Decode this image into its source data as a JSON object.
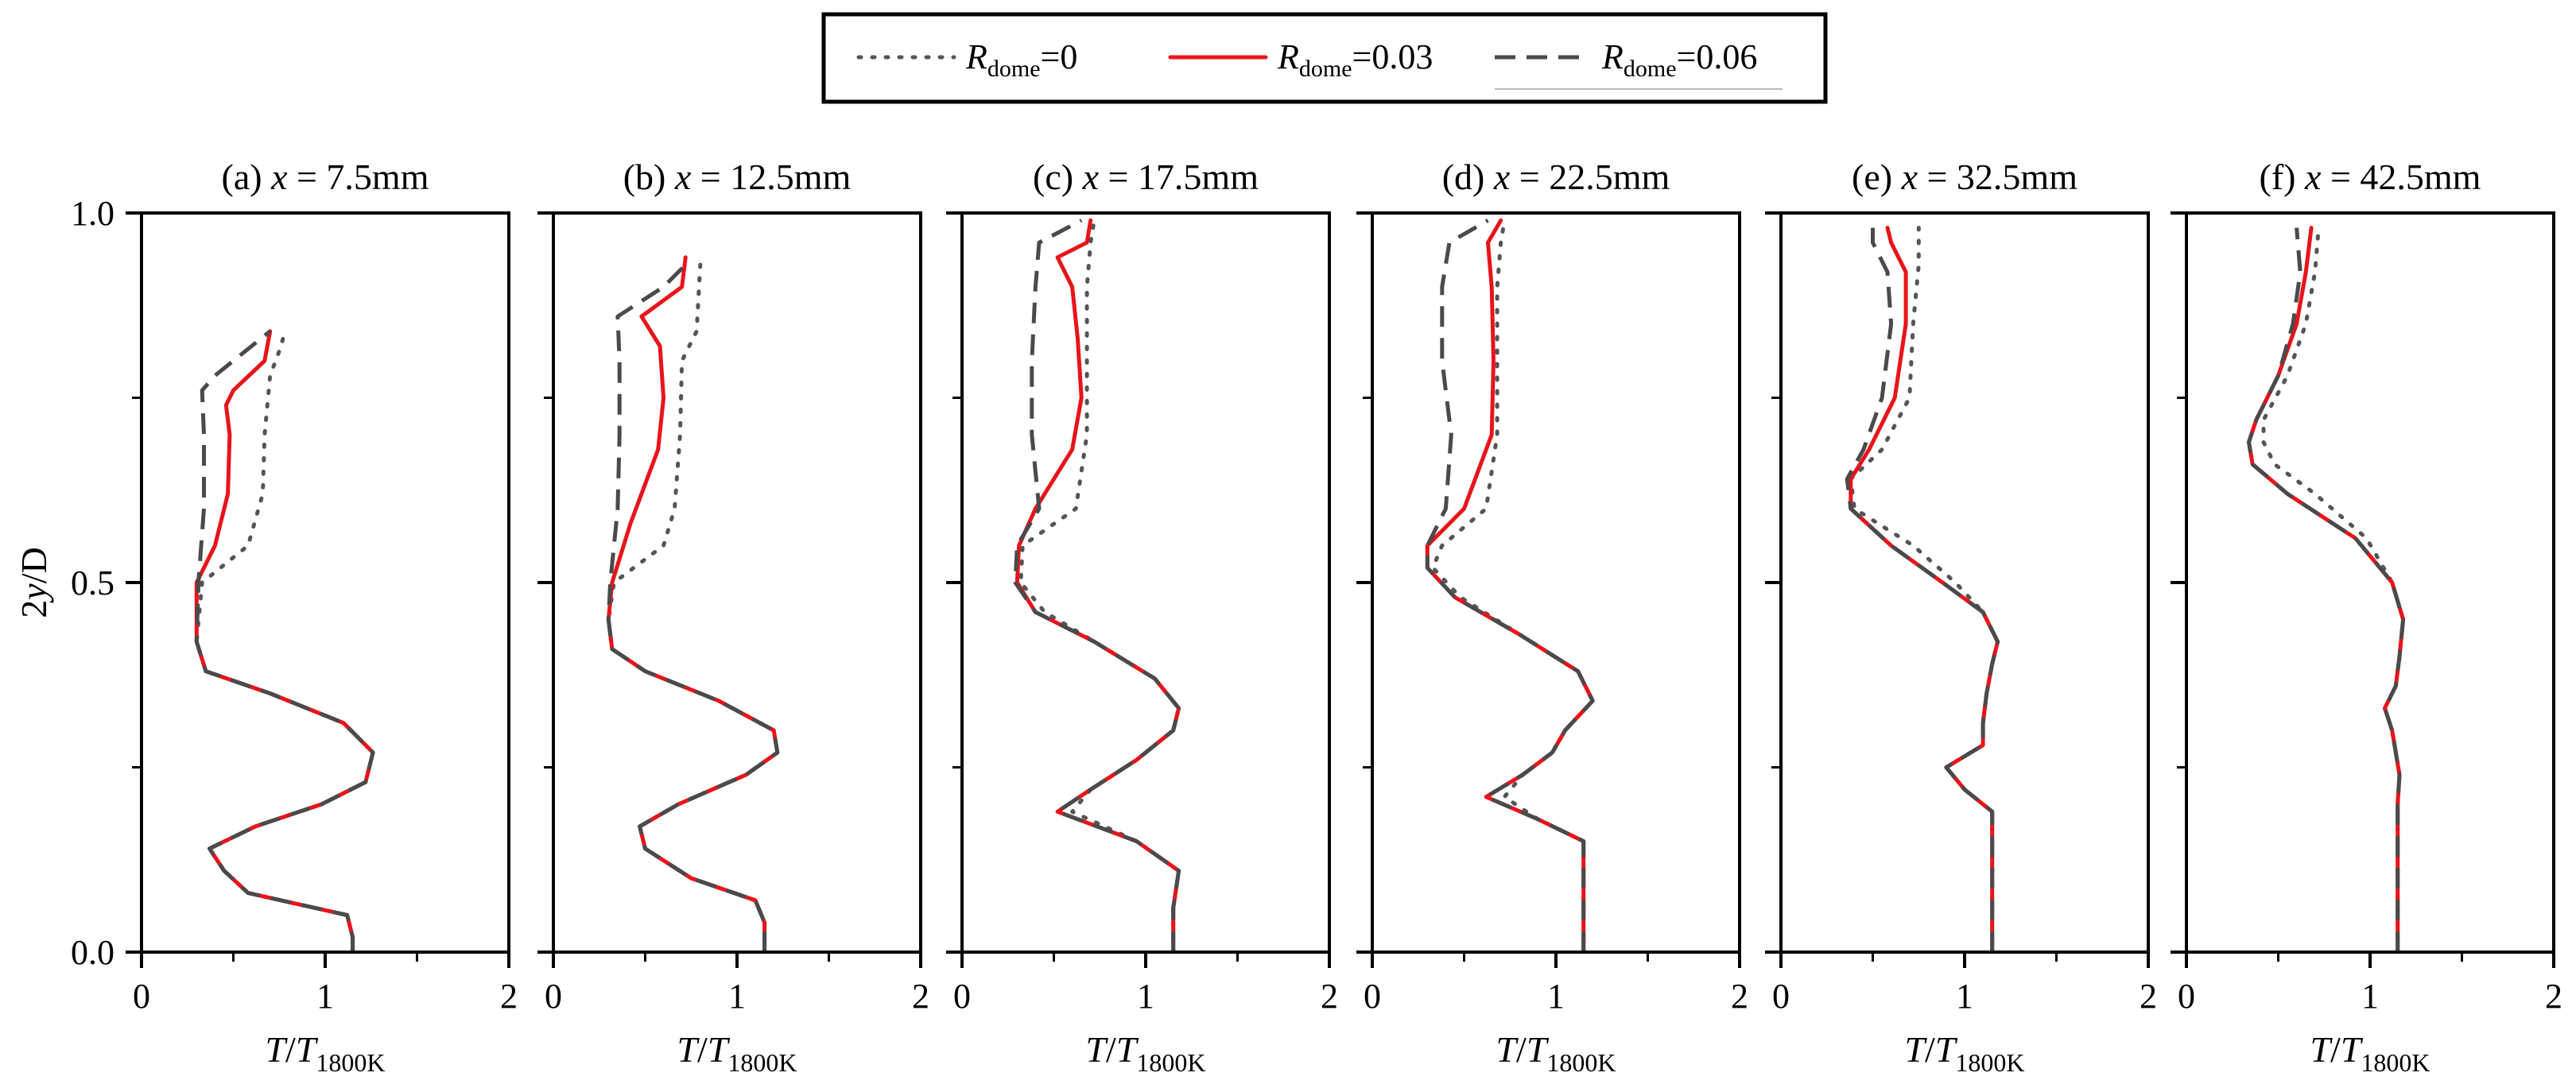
{
  "figure": {
    "legend": [
      {
        "base": "R",
        "sub": "dome",
        "suffix": "=0",
        "style": "dotted",
        "color": "#555555"
      },
      {
        "base": "R",
        "sub": "dome",
        "suffix": "=0.03",
        "style": "solid",
        "color": "#e8141b"
      },
      {
        "base": "R",
        "sub": "dome",
        "suffix": "=0.06",
        "style": "dashed",
        "color": "#4a4a4a"
      }
    ],
    "y_axis_label": {
      "main": "2",
      "italic": "y",
      "rest": "/D"
    },
    "x_axis_label": {
      "main": "T",
      "sep": "/",
      "base": "T",
      "sub": "1800K"
    }
  },
  "chart_data": [
    {
      "type": "line",
      "title": "(a) x = 7.5mm",
      "title_parts": {
        "prefix": "(a) ",
        "var": "x",
        "rest": " = 7.5mm"
      },
      "xlim": [
        0,
        2
      ],
      "ylim": [
        0,
        1
      ],
      "xticks": [
        "0",
        "1",
        "2"
      ],
      "yticks": [
        "0.0",
        "0.5",
        "1.0"
      ],
      "xlabel": "T/T1800K",
      "ylabel": "2y/D",
      "grid": false,
      "series": [
        {
          "name": "Rdome=0",
          "y": [
            0,
            0.02,
            0.05,
            0.08,
            0.11,
            0.14,
            0.17,
            0.2,
            0.23,
            0.27,
            0.31,
            0.35,
            0.38,
            0.42,
            0.5,
            0.55,
            0.62,
            0.7,
            0.78,
            0.82,
            0.84
          ],
          "x": [
            1.15,
            1.15,
            1.12,
            0.58,
            0.45,
            0.37,
            0.62,
            0.98,
            1.22,
            1.26,
            1.1,
            0.7,
            0.35,
            0.3,
            0.33,
            0.58,
            0.66,
            0.67,
            0.7,
            0.76,
            0.78
          ]
        },
        {
          "name": "Rdome=0.03",
          "y": [
            0,
            0.02,
            0.05,
            0.08,
            0.11,
            0.14,
            0.17,
            0.2,
            0.23,
            0.27,
            0.31,
            0.35,
            0.38,
            0.42,
            0.5,
            0.55,
            0.62,
            0.7,
            0.74,
            0.76,
            0.8,
            0.84
          ],
          "x": [
            1.15,
            1.15,
            1.12,
            0.58,
            0.45,
            0.37,
            0.62,
            0.98,
            1.22,
            1.26,
            1.1,
            0.7,
            0.35,
            0.3,
            0.3,
            0.4,
            0.47,
            0.48,
            0.46,
            0.5,
            0.67,
            0.7
          ]
        },
        {
          "name": "Rdome=0.06",
          "y": [
            0,
            0.02,
            0.05,
            0.08,
            0.11,
            0.14,
            0.17,
            0.2,
            0.23,
            0.27,
            0.31,
            0.35,
            0.38,
            0.42,
            0.5,
            0.6,
            0.7,
            0.76,
            0.78,
            0.84
          ],
          "x": [
            1.15,
            1.15,
            1.12,
            0.58,
            0.45,
            0.37,
            0.62,
            0.98,
            1.22,
            1.26,
            1.1,
            0.7,
            0.35,
            0.3,
            0.31,
            0.34,
            0.34,
            0.33,
            0.4,
            0.7
          ]
        }
      ]
    },
    {
      "type": "line",
      "title": "(b) x = 12.5mm",
      "title_parts": {
        "prefix": "(b) ",
        "var": "x",
        "rest": " = 12.5mm"
      },
      "xlim": [
        0,
        2
      ],
      "ylim": [
        0,
        1
      ],
      "xticks": [
        "0",
        "1",
        "2"
      ],
      "yticks": [
        "0.0",
        "0.5",
        "1.0"
      ],
      "xlabel": "T/T1800K",
      "ylabel": "2y/D",
      "grid": false,
      "series": [
        {
          "name": "Rdome=0",
          "y": [
            0,
            0.04,
            0.07,
            0.1,
            0.14,
            0.17,
            0.2,
            0.24,
            0.27,
            0.3,
            0.34,
            0.38,
            0.41,
            0.45,
            0.5,
            0.55,
            0.6,
            0.7,
            0.8,
            0.84,
            0.93
          ],
          "x": [
            1.15,
            1.15,
            1.1,
            0.75,
            0.5,
            0.47,
            0.68,
            1.05,
            1.22,
            1.2,
            0.9,
            0.5,
            0.32,
            0.3,
            0.33,
            0.6,
            0.66,
            0.69,
            0.7,
            0.78,
            0.8
          ]
        },
        {
          "name": "Rdome=0.03",
          "y": [
            0,
            0.04,
            0.07,
            0.1,
            0.14,
            0.17,
            0.2,
            0.24,
            0.27,
            0.3,
            0.34,
            0.38,
            0.41,
            0.45,
            0.5,
            0.58,
            0.68,
            0.75,
            0.82,
            0.86,
            0.9,
            0.94
          ],
          "x": [
            1.15,
            1.15,
            1.1,
            0.75,
            0.5,
            0.47,
            0.68,
            1.05,
            1.22,
            1.2,
            0.9,
            0.5,
            0.32,
            0.3,
            0.32,
            0.42,
            0.57,
            0.6,
            0.58,
            0.48,
            0.7,
            0.72
          ]
        },
        {
          "name": "Rdome=0.06",
          "y": [
            0,
            0.04,
            0.07,
            0.1,
            0.14,
            0.17,
            0.2,
            0.24,
            0.27,
            0.3,
            0.34,
            0.38,
            0.41,
            0.45,
            0.5,
            0.6,
            0.7,
            0.8,
            0.86,
            0.9,
            0.93
          ],
          "x": [
            1.15,
            1.15,
            1.1,
            0.75,
            0.5,
            0.47,
            0.68,
            1.05,
            1.22,
            1.2,
            0.9,
            0.5,
            0.32,
            0.3,
            0.31,
            0.35,
            0.36,
            0.36,
            0.35,
            0.6,
            0.72
          ]
        }
      ]
    },
    {
      "type": "line",
      "title": "(c) x = 17.5mm",
      "title_parts": {
        "prefix": "(c) ",
        "var": "x",
        "rest": " = 17.5mm"
      },
      "xlim": [
        0,
        2
      ],
      "ylim": [
        0,
        1
      ],
      "xticks": [
        "0",
        "1",
        "2"
      ],
      "yticks": [
        "0.0",
        "0.5",
        "1.0"
      ],
      "xlabel": "T/T1800K",
      "ylabel": "2y/D",
      "grid": false,
      "series": [
        {
          "name": "Rdome=0",
          "y": [
            0,
            0.06,
            0.11,
            0.15,
            0.19,
            0.22,
            0.26,
            0.3,
            0.33,
            0.37,
            0.42,
            0.46,
            0.5,
            0.55,
            0.6,
            0.7,
            0.8,
            0.9,
            0.96,
            0.99
          ],
          "x": [
            1.15,
            1.15,
            1.18,
            0.95,
            0.6,
            0.7,
            0.95,
            1.15,
            1.18,
            1.05,
            0.72,
            0.45,
            0.32,
            0.33,
            0.62,
            0.68,
            0.68,
            0.68,
            0.7,
            0.72
          ]
        },
        {
          "name": "Rdome=0.03",
          "y": [
            0,
            0.06,
            0.11,
            0.15,
            0.19,
            0.22,
            0.26,
            0.3,
            0.33,
            0.37,
            0.42,
            0.46,
            0.5,
            0.55,
            0.6,
            0.68,
            0.75,
            0.83,
            0.9,
            0.94,
            0.96,
            0.99
          ],
          "x": [
            1.15,
            1.15,
            1.18,
            0.95,
            0.52,
            0.7,
            0.95,
            1.15,
            1.18,
            1.05,
            0.72,
            0.4,
            0.3,
            0.31,
            0.4,
            0.6,
            0.65,
            0.63,
            0.6,
            0.52,
            0.68,
            0.7
          ]
        },
        {
          "name": "Rdome=0.06",
          "y": [
            0,
            0.06,
            0.11,
            0.15,
            0.19,
            0.22,
            0.26,
            0.3,
            0.33,
            0.37,
            0.42,
            0.46,
            0.5,
            0.55,
            0.6,
            0.7,
            0.8,
            0.9,
            0.96,
            0.99
          ],
          "x": [
            1.15,
            1.15,
            1.18,
            0.95,
            0.52,
            0.7,
            0.95,
            1.15,
            1.18,
            1.05,
            0.72,
            0.4,
            0.29,
            0.3,
            0.42,
            0.38,
            0.38,
            0.4,
            0.42,
            0.65
          ]
        }
      ]
    },
    {
      "type": "line",
      "title": "(d) x = 22.5mm",
      "title_parts": {
        "prefix": "(d) ",
        "var": "x",
        "rest": " = 22.5mm"
      },
      "xlim": [
        0,
        2
      ],
      "ylim": [
        0,
        1
      ],
      "xticks": [
        "0",
        "1",
        "2"
      ],
      "yticks": [
        "0.0",
        "0.5",
        "1.0"
      ],
      "xlabel": "T/T1800K",
      "ylabel": "2y/D",
      "grid": false,
      "series": [
        {
          "name": "Rdome=0",
          "y": [
            0,
            0.1,
            0.15,
            0.18,
            0.21,
            0.24,
            0.27,
            0.3,
            0.34,
            0.38,
            0.43,
            0.48,
            0.52,
            0.55,
            0.6,
            0.7,
            0.8,
            0.9,
            0.96,
            0.99
          ],
          "x": [
            1.15,
            1.15,
            1.15,
            0.9,
            0.72,
            0.82,
            0.98,
            1.05,
            1.2,
            1.12,
            0.8,
            0.48,
            0.33,
            0.38,
            0.62,
            0.68,
            0.68,
            0.68,
            0.7,
            0.72
          ]
        },
        {
          "name": "Rdome=0.03",
          "y": [
            0,
            0.1,
            0.15,
            0.18,
            0.21,
            0.24,
            0.27,
            0.3,
            0.34,
            0.38,
            0.43,
            0.48,
            0.52,
            0.55,
            0.6,
            0.7,
            0.8,
            0.9,
            0.96,
            0.99
          ],
          "x": [
            1.15,
            1.15,
            1.15,
            0.9,
            0.62,
            0.82,
            0.98,
            1.05,
            1.2,
            1.12,
            0.8,
            0.45,
            0.3,
            0.3,
            0.5,
            0.65,
            0.66,
            0.65,
            0.63,
            0.7
          ]
        },
        {
          "name": "Rdome=0.06",
          "y": [
            0,
            0.1,
            0.15,
            0.18,
            0.21,
            0.24,
            0.27,
            0.3,
            0.34,
            0.38,
            0.43,
            0.48,
            0.52,
            0.55,
            0.6,
            0.7,
            0.8,
            0.9,
            0.96,
            0.99
          ],
          "x": [
            1.15,
            1.15,
            1.15,
            0.9,
            0.62,
            0.82,
            0.98,
            1.05,
            1.2,
            1.12,
            0.8,
            0.45,
            0.3,
            0.3,
            0.4,
            0.43,
            0.38,
            0.38,
            0.42,
            0.63
          ]
        }
      ]
    },
    {
      "type": "line",
      "title": "(e) x = 32.5mm",
      "title_parts": {
        "prefix": "(e) ",
        "var": "x",
        "rest": " = 32.5mm"
      },
      "xlim": [
        0,
        2
      ],
      "ylim": [
        0,
        1
      ],
      "xticks": [
        "0",
        "1",
        "2"
      ],
      "yticks": [
        "0.0",
        "0.5",
        "1.0"
      ],
      "xlabel": "T/T1800K",
      "ylabel": "2y/D",
      "grid": false,
      "series": [
        {
          "name": "Rdome=0",
          "y": [
            0,
            0.1,
            0.15,
            0.19,
            0.22,
            0.25,
            0.28,
            0.31,
            0.35,
            0.39,
            0.42,
            0.46,
            0.5,
            0.55,
            0.6,
            0.64,
            0.68,
            0.75,
            0.85,
            0.93,
            0.98
          ],
          "x": [
            1.15,
            1.15,
            1.15,
            1.15,
            1.0,
            0.9,
            1.1,
            1.1,
            1.12,
            1.15,
            1.18,
            1.1,
            0.95,
            0.72,
            0.4,
            0.38,
            0.55,
            0.7,
            0.72,
            0.75,
            0.75
          ]
        },
        {
          "name": "Rdome=0.03",
          "y": [
            0,
            0.1,
            0.15,
            0.19,
            0.22,
            0.25,
            0.28,
            0.31,
            0.35,
            0.39,
            0.42,
            0.46,
            0.5,
            0.55,
            0.6,
            0.64,
            0.68,
            0.75,
            0.85,
            0.92,
            0.96,
            0.98
          ],
          "x": [
            1.15,
            1.15,
            1.15,
            1.15,
            1.0,
            0.9,
            1.1,
            1.1,
            1.12,
            1.15,
            1.18,
            1.1,
            0.88,
            0.6,
            0.38,
            0.38,
            0.48,
            0.62,
            0.68,
            0.68,
            0.6,
            0.58
          ]
        },
        {
          "name": "Rdome=0.06",
          "y": [
            0,
            0.1,
            0.15,
            0.19,
            0.22,
            0.25,
            0.28,
            0.31,
            0.35,
            0.39,
            0.42,
            0.46,
            0.5,
            0.55,
            0.6,
            0.64,
            0.68,
            0.75,
            0.85,
            0.92,
            0.96,
            0.98
          ],
          "x": [
            1.15,
            1.15,
            1.15,
            1.15,
            1.0,
            0.9,
            1.1,
            1.1,
            1.12,
            1.15,
            1.18,
            1.1,
            0.88,
            0.6,
            0.38,
            0.36,
            0.45,
            0.55,
            0.6,
            0.58,
            0.5,
            0.5
          ]
        }
      ]
    },
    {
      "type": "line",
      "title": "(f) x = 42.5mm",
      "title_parts": {
        "prefix": "(f) ",
        "var": "x",
        "rest": " = 42.5mm"
      },
      "xlim": [
        0,
        2
      ],
      "ylim": [
        0,
        1
      ],
      "xticks": [
        "0",
        "1",
        "2"
      ],
      "yticks": [
        "0.0",
        "0.5",
        "1.0"
      ],
      "xlabel": "T/T1800K",
      "ylabel": "2y/D",
      "grid": false,
      "series": [
        {
          "name": "Rdome=0",
          "y": [
            0,
            0.1,
            0.2,
            0.24,
            0.3,
            0.33,
            0.36,
            0.4,
            0.45,
            0.5,
            0.56,
            0.62,
            0.66,
            0.69,
            0.72,
            0.78,
            0.85,
            0.92,
            0.98
          ],
          "x": [
            1.15,
            1.15,
            1.15,
            1.16,
            1.12,
            1.08,
            1.14,
            1.16,
            1.18,
            1.12,
            0.98,
            0.7,
            0.48,
            0.42,
            0.42,
            0.55,
            0.65,
            0.7,
            0.72
          ]
        },
        {
          "name": "Rdome=0.03",
          "y": [
            0,
            0.1,
            0.2,
            0.24,
            0.3,
            0.33,
            0.36,
            0.4,
            0.45,
            0.5,
            0.56,
            0.62,
            0.66,
            0.69,
            0.72,
            0.78,
            0.85,
            0.92,
            0.98
          ],
          "x": [
            1.15,
            1.15,
            1.15,
            1.16,
            1.12,
            1.08,
            1.14,
            1.16,
            1.18,
            1.12,
            0.92,
            0.55,
            0.36,
            0.34,
            0.38,
            0.5,
            0.6,
            0.65,
            0.68
          ]
        },
        {
          "name": "Rdome=0.06",
          "y": [
            0,
            0.1,
            0.2,
            0.24,
            0.3,
            0.33,
            0.36,
            0.4,
            0.45,
            0.5,
            0.56,
            0.62,
            0.66,
            0.69,
            0.72,
            0.78,
            0.85,
            0.92,
            0.98
          ],
          "x": [
            1.15,
            1.15,
            1.15,
            1.16,
            1.12,
            1.08,
            1.14,
            1.16,
            1.18,
            1.12,
            0.92,
            0.55,
            0.36,
            0.34,
            0.38,
            0.5,
            0.58,
            0.62,
            0.6
          ]
        }
      ]
    }
  ]
}
